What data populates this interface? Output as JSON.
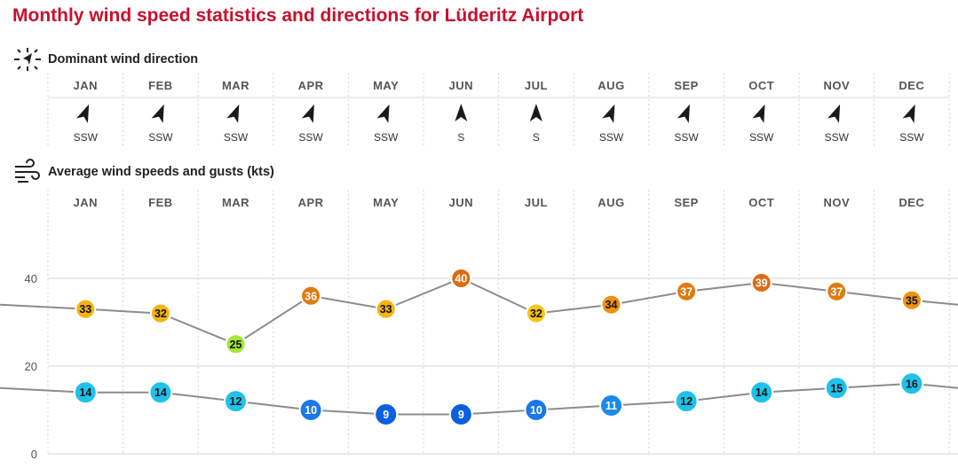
{
  "title": "Monthly wind speed statistics and directions for Lüderitz Airport",
  "direction_section": {
    "heading": "Dominant wind direction",
    "icon": "wind-compass-icon",
    "months": [
      {
        "month": "JAN",
        "dir": "SSW",
        "bearing": 202.5
      },
      {
        "month": "FEB",
        "dir": "SSW",
        "bearing": 202.5
      },
      {
        "month": "MAR",
        "dir": "SSW",
        "bearing": 202.5
      },
      {
        "month": "APR",
        "dir": "SSW",
        "bearing": 202.5
      },
      {
        "month": "MAY",
        "dir": "SSW",
        "bearing": 202.5
      },
      {
        "month": "JUN",
        "dir": "S",
        "bearing": 180
      },
      {
        "month": "JUL",
        "dir": "S",
        "bearing": 180
      },
      {
        "month": "AUG",
        "dir": "SSW",
        "bearing": 202.5
      },
      {
        "month": "SEP",
        "dir": "SSW",
        "bearing": 202.5
      },
      {
        "month": "OCT",
        "dir": "SSW",
        "bearing": 202.5
      },
      {
        "month": "NOV",
        "dir": "SSW",
        "bearing": 202.5
      },
      {
        "month": "DEC",
        "dir": "SSW",
        "bearing": 202.5
      }
    ]
  },
  "speed_section": {
    "heading": "Average wind speeds and gusts (kts)",
    "icon": "wind-lines-icon"
  },
  "colors": {
    "title": "#c8102e",
    "line": "#8c8c8c",
    "grid": "#d4d4d4"
  },
  "chart_data": {
    "type": "line",
    "title": "Average wind speeds and gusts (kts)",
    "categories": [
      "JAN",
      "FEB",
      "MAR",
      "APR",
      "MAY",
      "JUN",
      "JUL",
      "AUG",
      "SEP",
      "OCT",
      "NOV",
      "DEC"
    ],
    "series": [
      {
        "name": "Gusts",
        "values": [
          33,
          32,
          25,
          36,
          33,
          40,
          32,
          34,
          37,
          39,
          37,
          35
        ],
        "colors": [
          "#f5b40e",
          "#f5b40e",
          "#a3e635",
          "#e07b10",
          "#f5b40e",
          "#e06a10",
          "#f5c518",
          "#f0920e",
          "#e07b10",
          "#e06a10",
          "#e07b10",
          "#f0920e"
        ]
      },
      {
        "name": "Average speed",
        "values": [
          14,
          14,
          12,
          10,
          9,
          9,
          10,
          11,
          12,
          14,
          15,
          16
        ],
        "colors": [
          "#1ec2ea",
          "#1ec2ea",
          "#1ec2ea",
          "#1a78e8",
          "#0b5fe0",
          "#0b5fe0",
          "#1a78e8",
          "#1a8ae8",
          "#1ec2ea",
          "#1ec2ea",
          "#1ec2ea",
          "#1ec2ea"
        ]
      }
    ],
    "edge_values": {
      "gusts": [
        34,
        34
      ],
      "speed": [
        15,
        15
      ]
    },
    "ylim": [
      0,
      50
    ],
    "yticks": [
      0,
      20,
      40
    ],
    "xlabel": "",
    "ylabel": "",
    "grid": true
  }
}
